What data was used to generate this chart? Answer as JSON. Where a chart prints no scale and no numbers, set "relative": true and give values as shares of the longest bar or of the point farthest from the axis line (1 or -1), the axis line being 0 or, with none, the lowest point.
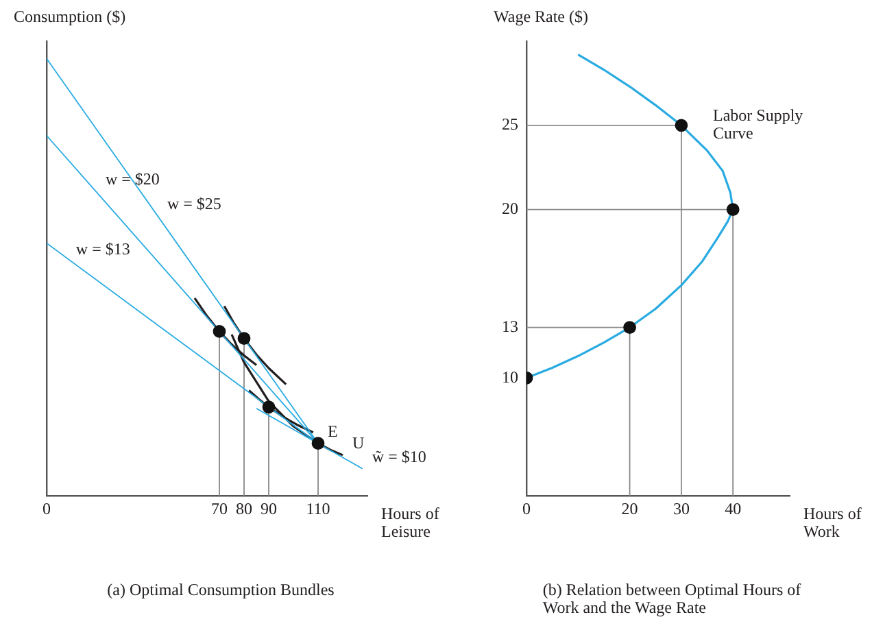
{
  "chart_data": [
    {
      "type": "line",
      "title": "(a) Optimal Consumption Bundles",
      "xlabel": "Hours of Leisure",
      "ylabel": "Consumption ($)",
      "relative": true,
      "xlim": [
        0,
        130
      ],
      "xticks": [
        0,
        70,
        80,
        90,
        110
      ],
      "legend": false,
      "annotations": [
        {
          "text": "w = $25",
          "x": 45,
          "y": 0.64
        },
        {
          "text": "w = $20",
          "x": 20,
          "y": 0.696
        },
        {
          "text": "w = $13",
          "x": 8,
          "y": 0.537
        },
        {
          "text": "w̃ = $10",
          "x": 128,
          "y": 0.062
        },
        {
          "text": "U",
          "x": 120,
          "y": 0.093
        },
        {
          "text": "E",
          "x": 110,
          "y": 0.12
        }
      ],
      "series": [
        {
          "type": "line",
          "color": "#29abe2",
          "x": [
            0,
            110
          ],
          "values": [
            1,
            0.12
          ]
        },
        {
          "type": "line",
          "color": "#29abe2",
          "x": [
            0,
            110
          ],
          "values": [
            0.824,
            0.12
          ]
        },
        {
          "type": "line",
          "color": "#29abe2",
          "x": [
            0,
            110
          ],
          "values": [
            0.578,
            0.12
          ]
        },
        {
          "type": "line",
          "color": "#29abe2",
          "x": [
            85,
            128
          ],
          "values": [
            0.2,
            0.062
          ]
        },
        {
          "type": "line",
          "color": "#231f20",
          "x": [
            72,
            76,
            80,
            85,
            90,
            97
          ],
          "values": [
            0.434,
            0.394,
            0.36,
            0.323,
            0.292,
            0.255
          ]
        },
        {
          "type": "line",
          "color": "#231f20",
          "x": [
            60,
            65,
            70,
            75,
            80,
            85
          ],
          "values": [
            0.452,
            0.411,
            0.376,
            0.346,
            0.321,
            0.299
          ]
        },
        {
          "type": "line",
          "color": "#231f20",
          "x": [
            82,
            86,
            90,
            96,
            102,
            108
          ],
          "values": [
            0.241,
            0.221,
            0.203,
            0.18,
            0.161,
            0.145
          ]
        },
        {
          "type": "line",
          "color": "#231f20",
          "x": [
            75,
            80,
            90,
            100,
            110,
            115,
            120
          ],
          "values": [
            0.369,
            0.305,
            0.216,
            0.159,
            0.12,
            0.105,
            0.093
          ]
        },
        {
          "type": "line",
          "color": "#888888",
          "x": [
            70,
            70
          ],
          "values": [
            0,
            0.376
          ]
        },
        {
          "type": "line",
          "color": "#888888",
          "x": [
            80,
            80
          ],
          "values": [
            0,
            0.36
          ]
        },
        {
          "type": "line",
          "color": "#888888",
          "x": [
            90,
            90
          ],
          "values": [
            0,
            0.203
          ]
        },
        {
          "type": "line",
          "color": "#888888",
          "x": [
            110,
            110
          ],
          "values": [
            0,
            0.12
          ]
        },
        {
          "type": "scatter",
          "color": "#111111",
          "marker": "circle",
          "x": [
            70,
            80,
            90,
            110
          ],
          "values": [
            0.376,
            0.36,
            0.203,
            0.12
          ]
        }
      ]
    },
    {
      "type": "line",
      "title": "(b) Relation between Optimal Hours of Work and the Wage Rate",
      "xlabel": "Hours of Work",
      "ylabel": "Wage Rate ($)",
      "xlim": [
        0,
        51
      ],
      "xticks": [
        0,
        20,
        30,
        40
      ],
      "ylim": [
        3,
        30
      ],
      "yticks": [
        10,
        13,
        20,
        25
      ],
      "legend": false,
      "annotations": [
        "Labor Supply Curve"
      ],
      "series": [
        {
          "type": "line",
          "color": "#29abe2",
          "x": [
            0,
            5,
            10,
            15,
            20,
            25,
            30,
            34,
            37,
            39,
            40,
            39.5,
            38,
            35,
            30,
            25,
            20,
            15,
            10
          ],
          "values": [
            10,
            10.6,
            11.3,
            12.1,
            13,
            14.1,
            15.5,
            16.9,
            18.3,
            19.3,
            20,
            21,
            22.3,
            23.5,
            25,
            26.2,
            27.3,
            28.3,
            29.2
          ]
        },
        {
          "type": "line",
          "color": "#888888",
          "x": [
            0,
            20
          ],
          "values": [
            13,
            13
          ]
        },
        {
          "type": "line",
          "color": "#888888",
          "x": [
            20,
            20
          ],
          "values": [
            3,
            13
          ]
        },
        {
          "type": "line",
          "color": "#888888",
          "x": [
            0,
            30
          ],
          "values": [
            25,
            25
          ]
        },
        {
          "type": "line",
          "color": "#888888",
          "x": [
            30,
            30
          ],
          "values": [
            3,
            25
          ]
        },
        {
          "type": "line",
          "color": "#888888",
          "x": [
            0,
            40
          ],
          "values": [
            20,
            20
          ]
        },
        {
          "type": "line",
          "color": "#888888",
          "x": [
            40,
            40
          ],
          "values": [
            3,
            20
          ]
        },
        {
          "type": "scatter",
          "color": "#111111",
          "marker": "circle",
          "x": [
            0,
            20,
            30,
            40
          ],
          "values": [
            10,
            13,
            25,
            20
          ]
        }
      ]
    }
  ]
}
